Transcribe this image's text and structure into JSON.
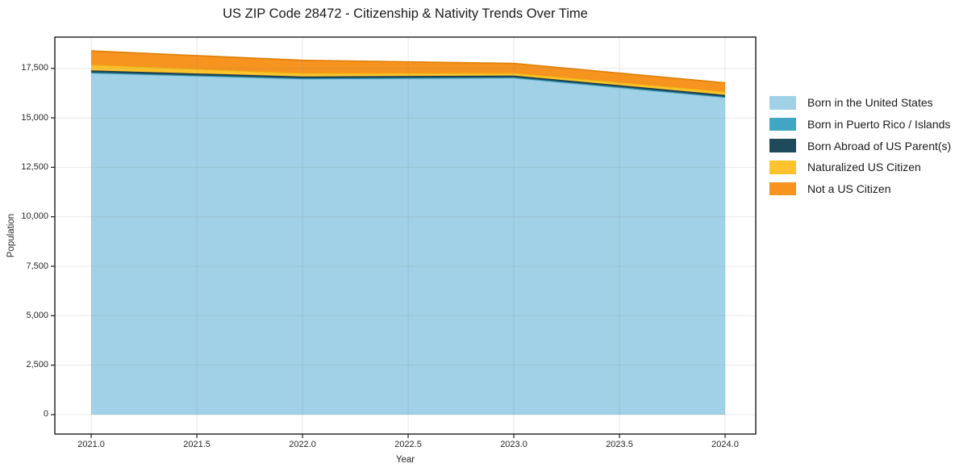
{
  "figure": {
    "title": "US ZIP Code 28472 - Citizenship & Nativity Trends Over Time"
  },
  "chart_data": {
    "type": "area",
    "stacked": true,
    "title": "US ZIP Code 28472 - Citizenship & Nativity Trends Over Time",
    "xlabel": "Year",
    "ylabel": "Population",
    "x": [
      2021,
      2022,
      2023,
      2024
    ],
    "series": [
      {
        "name": "Born in the United States",
        "color": "#a0d1e6",
        "edge_color": "#8ec6de",
        "values": [
          17250,
          16950,
          17000,
          16020
        ]
      },
      {
        "name": "Born in Puerto Rico / Islands",
        "color": "#41a6c4",
        "edge_color": "#3093b2",
        "values": [
          40,
          45,
          45,
          40
        ]
      },
      {
        "name": "Born Abroad of US Parent(s)",
        "color": "#1f4a5c",
        "edge_color": "#173c4c",
        "values": [
          110,
          95,
          95,
          100
        ]
      },
      {
        "name": "Naturalized US Citizen",
        "color": "#fcc32d",
        "edge_color": "#edb30d",
        "values": [
          280,
          165,
          125,
          160
        ]
      },
      {
        "name": "Not a US Citizen",
        "color": "#f7941f",
        "edge_color": "#e2820c",
        "values": [
          700,
          650,
          485,
          445
        ]
      }
    ],
    "stack_totals": [
      18380,
      17905,
      17750,
      16765
    ],
    "xlim": [
      2020.828,
      2024.145
    ],
    "ylim": [
      -980,
      19080
    ],
    "x_ticks": [
      {
        "value": 2021.0,
        "label": "2021.0"
      },
      {
        "value": 2021.5,
        "label": "2021.5"
      },
      {
        "value": 2022.0,
        "label": "2022.0"
      },
      {
        "value": 2022.5,
        "label": "2022.5"
      },
      {
        "value": 2023.0,
        "label": "2023.0"
      },
      {
        "value": 2023.5,
        "label": "2023.5"
      },
      {
        "value": 2024.0,
        "label": "2024.0"
      }
    ],
    "y_ticks": [
      {
        "value": 0,
        "label": "0"
      },
      {
        "value": 2500,
        "label": "2,500"
      },
      {
        "value": 5000,
        "label": "5,000"
      },
      {
        "value": 7500,
        "label": "7,500"
      },
      {
        "value": 10000,
        "label": "10,000"
      },
      {
        "value": 12500,
        "label": "12,500"
      },
      {
        "value": 15000,
        "label": "15,000"
      },
      {
        "value": 17500,
        "label": "17,500"
      }
    ],
    "grid": true,
    "legend_position": "right"
  }
}
